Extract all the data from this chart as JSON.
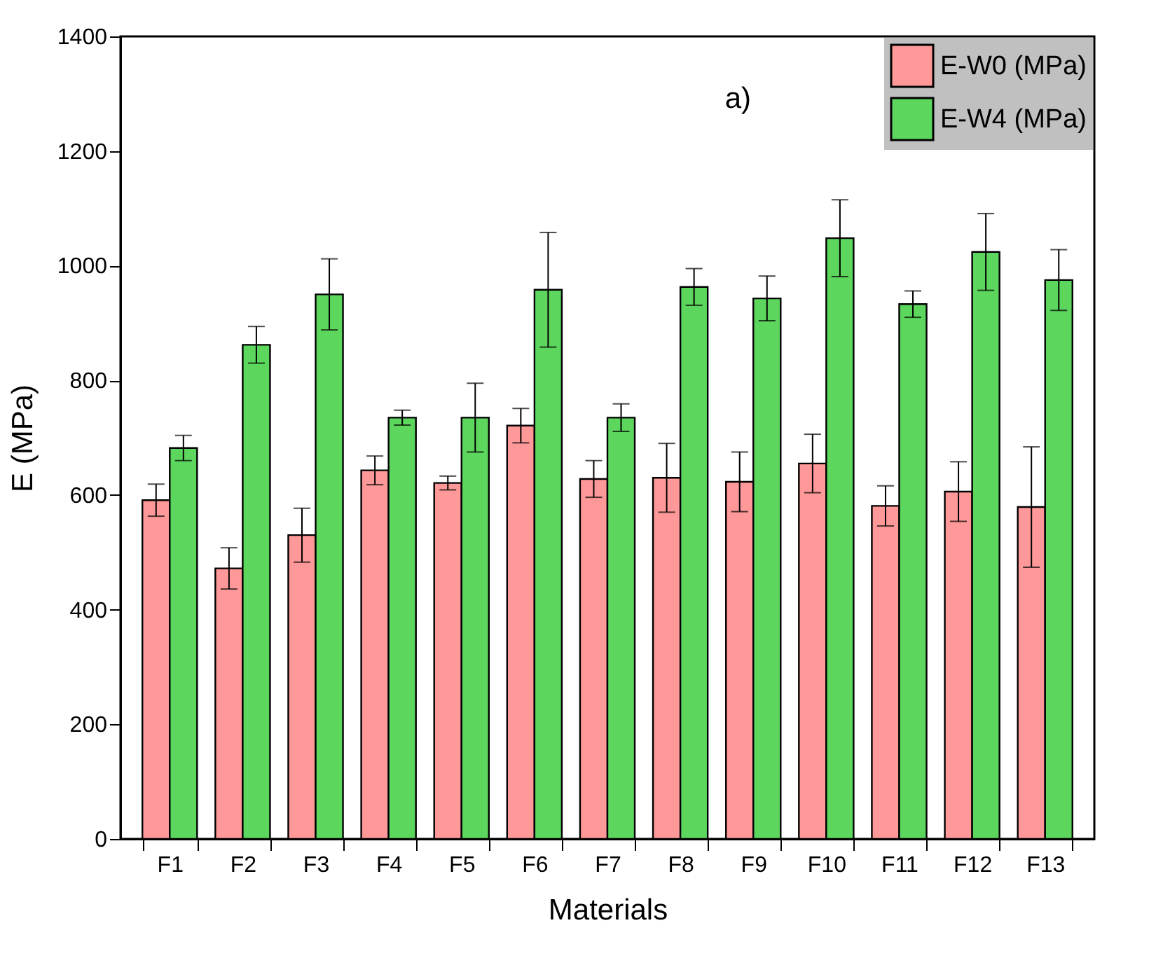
{
  "chart_data": {
    "type": "bar",
    "xlabel": "Materials",
    "ylabel": "E (MPa)",
    "categories": [
      "F1",
      "F2",
      "F3",
      "F4",
      "F5",
      "F6",
      "F7",
      "F8",
      "F9",
      "F10",
      "F11",
      "F12",
      "F13"
    ],
    "series": [
      {
        "name": "E-W0 (MPa)",
        "color": "#ff9999",
        "values": [
          591,
          472,
          530,
          643,
          621,
          721,
          628,
          630,
          623,
          655,
          581,
          606,
          579
        ],
        "errors": [
          28,
          36,
          47,
          25,
          12,
          30,
          32,
          60,
          52,
          51,
          35,
          52,
          105
        ]
      },
      {
        "name": "E-W4 (MPa)",
        "color": "#5cd65c",
        "values": [
          682,
          862,
          950,
          735,
          735,
          958,
          735,
          963,
          943,
          1048,
          933,
          1024,
          975
        ],
        "errors": [
          22,
          32,
          62,
          13,
          60,
          100,
          24,
          32,
          39,
          67,
          23,
          67,
          53
        ]
      }
    ],
    "ylim": [
      0,
      1400
    ],
    "yticks": [
      0,
      200,
      400,
      600,
      800,
      1000,
      1200,
      1400
    ],
    "annotations": [
      "a)"
    ],
    "legend": "top right",
    "grid": false
  }
}
